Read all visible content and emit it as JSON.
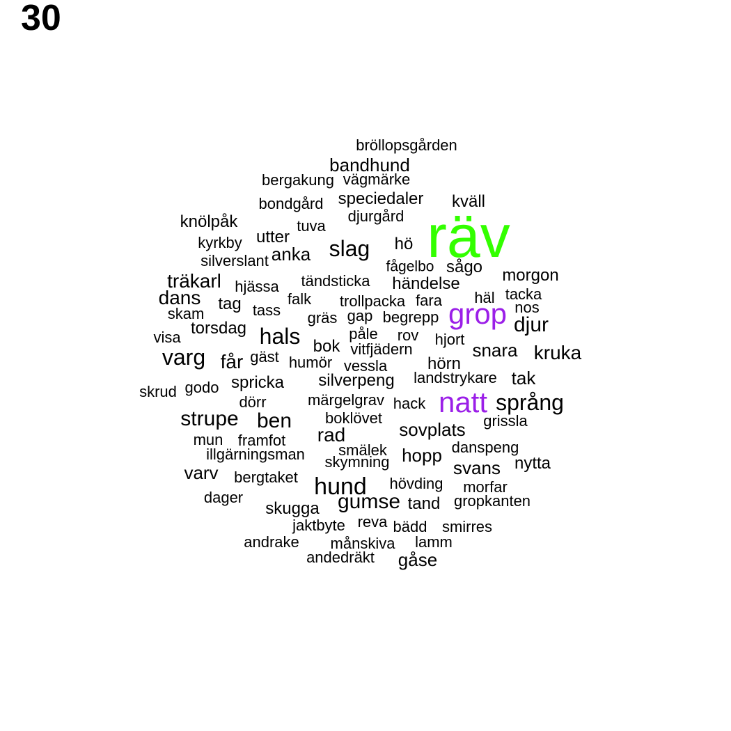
{
  "panel_label": "30",
  "colors": {
    "default": "#000000",
    "highlight_green": "#33ff00",
    "highlight_purple": "#9b1fe8"
  },
  "words": [
    {
      "text": "räv",
      "color": "highlight_green"
    },
    {
      "text": "grop",
      "color": "highlight_purple"
    },
    {
      "text": "natt",
      "color": "highlight_purple"
    },
    {
      "text": "bröllopsgården"
    },
    {
      "text": "bandhund"
    },
    {
      "text": "bergakung"
    },
    {
      "text": "vägmärke"
    },
    {
      "text": "bondgård"
    },
    {
      "text": "speciedaler"
    },
    {
      "text": "kväll"
    },
    {
      "text": "djurgård"
    },
    {
      "text": "knölpåk"
    },
    {
      "text": "tuva"
    },
    {
      "text": "utter"
    },
    {
      "text": "kyrkby"
    },
    {
      "text": "slag"
    },
    {
      "text": "hö"
    },
    {
      "text": "anka"
    },
    {
      "text": "silverslant"
    },
    {
      "text": "fågelbo"
    },
    {
      "text": "sågo"
    },
    {
      "text": "morgon"
    },
    {
      "text": "träkarl"
    },
    {
      "text": "tändsticka"
    },
    {
      "text": "händelse"
    },
    {
      "text": "hjässa"
    },
    {
      "text": "tacka"
    },
    {
      "text": "dans"
    },
    {
      "text": "falk"
    },
    {
      "text": "trollpacka"
    },
    {
      "text": "fara"
    },
    {
      "text": "häl"
    },
    {
      "text": "tag"
    },
    {
      "text": "nos"
    },
    {
      "text": "skam"
    },
    {
      "text": "tass"
    },
    {
      "text": "gräs"
    },
    {
      "text": "gap"
    },
    {
      "text": "begrepp"
    },
    {
      "text": "djur"
    },
    {
      "text": "torsdag"
    },
    {
      "text": "hals"
    },
    {
      "text": "påle"
    },
    {
      "text": "rov"
    },
    {
      "text": "visa"
    },
    {
      "text": "hjort"
    },
    {
      "text": "bok"
    },
    {
      "text": "vitfjädern"
    },
    {
      "text": "snara"
    },
    {
      "text": "kruka"
    },
    {
      "text": "varg"
    },
    {
      "text": "gäst"
    },
    {
      "text": "får"
    },
    {
      "text": "humör"
    },
    {
      "text": "vessla"
    },
    {
      "text": "hörn"
    },
    {
      "text": "spricka"
    },
    {
      "text": "silverpeng"
    },
    {
      "text": "landstrykare"
    },
    {
      "text": "tak"
    },
    {
      "text": "skrud"
    },
    {
      "text": "godo"
    },
    {
      "text": "dörr"
    },
    {
      "text": "märgelgrav"
    },
    {
      "text": "hack"
    },
    {
      "text": "språng"
    },
    {
      "text": "strupe"
    },
    {
      "text": "ben"
    },
    {
      "text": "boklövet"
    },
    {
      "text": "grissla"
    },
    {
      "text": "sovplats"
    },
    {
      "text": "rad"
    },
    {
      "text": "mun"
    },
    {
      "text": "framfot"
    },
    {
      "text": "smälek"
    },
    {
      "text": "danspeng"
    },
    {
      "text": "illgärningsman"
    },
    {
      "text": "hopp"
    },
    {
      "text": "skymning"
    },
    {
      "text": "nytta"
    },
    {
      "text": "svans"
    },
    {
      "text": "varv"
    },
    {
      "text": "bergtaket"
    },
    {
      "text": "hund"
    },
    {
      "text": "hövding"
    },
    {
      "text": "morfar"
    },
    {
      "text": "dager"
    },
    {
      "text": "gumse"
    },
    {
      "text": "tand"
    },
    {
      "text": "gropkanten"
    },
    {
      "text": "skugga"
    },
    {
      "text": "jaktbyte"
    },
    {
      "text": "reva"
    },
    {
      "text": "bädd"
    },
    {
      "text": "smirres"
    },
    {
      "text": "andrake"
    },
    {
      "text": "månskiva"
    },
    {
      "text": "lamm"
    },
    {
      "text": "andedräkt"
    },
    {
      "text": "gåse"
    }
  ]
}
